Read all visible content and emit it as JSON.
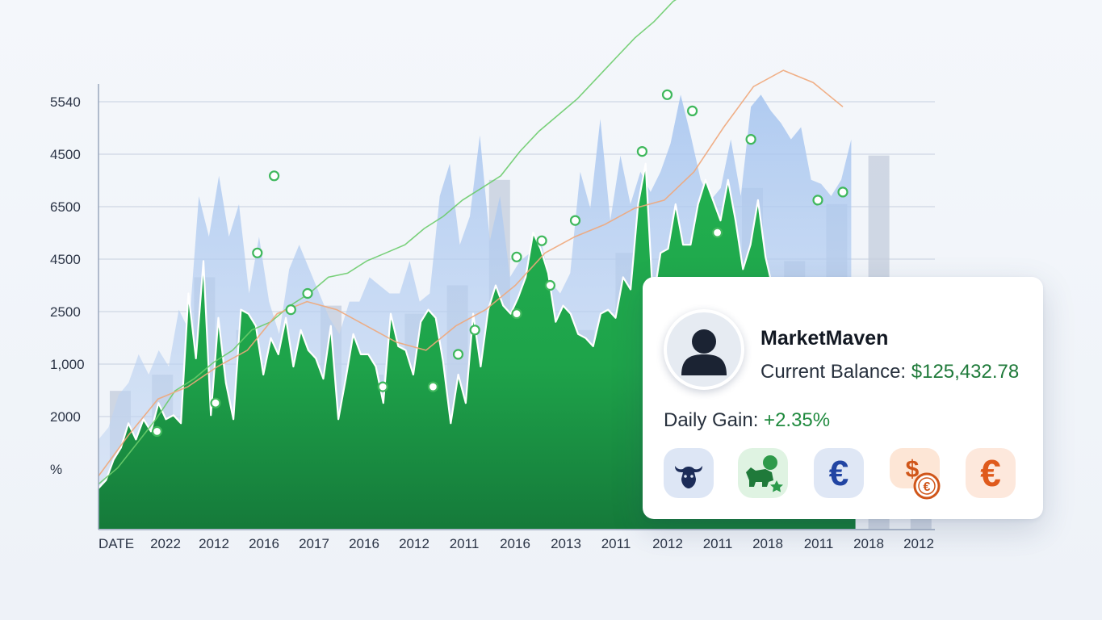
{
  "chart_data": {
    "type": "area",
    "y_tick_labels": [
      "5540",
      "4500",
      "6500",
      "4500",
      "2500",
      "1,000",
      "2000",
      "%"
    ],
    "x_tick_labels": [
      "DATE",
      "2022",
      "2012",
      "2016",
      "2017",
      "2016",
      "2012",
      "2011",
      "2016",
      "2013",
      "2011",
      "2012",
      "2011",
      "2018",
      "2011",
      "2018",
      "2012"
    ],
    "grid": true,
    "legend": "none",
    "series": [
      {
        "kind": "area",
        "color": "#1ba34a",
        "values": [
          0.1,
          0.12,
          0.17,
          0.2,
          0.26,
          0.22,
          0.27,
          0.24,
          0.31,
          0.27,
          0.28,
          0.26,
          0.58,
          0.42,
          0.66,
          0.28,
          0.52,
          0.36,
          0.27,
          0.54,
          0.53,
          0.5,
          0.38,
          0.47,
          0.43,
          0.52,
          0.4,
          0.49,
          0.44,
          0.42,
          0.37,
          0.5,
          0.27,
          0.37,
          0.48,
          0.43,
          0.43,
          0.4,
          0.31,
          0.53,
          0.45,
          0.44,
          0.38,
          0.51,
          0.54,
          0.52,
          0.41,
          0.26,
          0.38,
          0.31,
          0.53,
          0.4,
          0.54,
          0.6,
          0.55,
          0.53,
          0.57,
          0.62,
          0.73,
          0.69,
          0.63,
          0.51,
          0.55,
          0.53,
          0.48,
          0.47,
          0.45,
          0.53,
          0.54,
          0.52,
          0.62,
          0.59,
          0.8,
          0.9,
          0.56,
          0.68,
          0.69,
          0.8,
          0.7,
          0.7,
          0.8,
          0.86,
          0.81,
          0.76,
          0.86,
          0.76,
          0.64,
          0.7,
          0.81,
          0.67,
          0.59,
          0.53,
          0.48,
          0.43,
          0.61,
          0.56,
          0.54,
          0.48,
          0.4,
          0.34,
          0.3,
          0.26
        ]
      },
      {
        "kind": "area",
        "color": "#9fc0ec",
        "values": [
          0.22,
          0.25,
          0.33,
          0.36,
          0.43,
          0.38,
          0.44,
          0.4,
          0.54,
          0.49,
          0.82,
          0.72,
          0.87,
          0.72,
          0.8,
          0.58,
          0.72,
          0.56,
          0.48,
          0.64,
          0.7,
          0.64,
          0.58,
          0.52,
          0.48,
          0.56,
          0.56,
          0.62,
          0.6,
          0.58,
          0.58,
          0.66,
          0.56,
          0.58,
          0.82,
          0.9,
          0.7,
          0.77,
          0.97,
          0.71,
          0.82,
          0.62,
          0.66,
          0.68,
          0.72,
          0.61,
          0.58,
          0.63,
          0.88,
          0.79,
          1.01,
          0.76,
          0.92,
          0.8,
          0.88,
          0.83,
          0.88,
          0.95,
          1.07,
          0.97,
          0.86,
          0.81,
          0.84,
          0.96,
          0.82,
          1.04,
          1.07,
          1.03,
          1.0,
          0.96,
          0.99,
          0.86,
          0.85,
          0.82,
          0.86,
          0.96
        ]
      },
      {
        "kind": "line",
        "color": "#6ccc6c",
        "values": [
          0.11,
          0.15,
          0.21,
          0.27,
          0.34,
          0.37,
          0.41,
          0.44,
          0.49,
          0.51,
          0.55,
          0.58,
          0.62,
          0.63,
          0.66,
          0.68,
          0.7,
          0.74,
          0.77,
          0.81,
          0.84,
          0.87,
          0.93,
          0.98,
          1.02,
          1.06,
          1.11,
          1.16,
          1.21,
          1.25,
          1.3,
          1.33
        ]
      },
      {
        "kind": "line",
        "color": "#f0a77a",
        "values": [
          0.13,
          0.23,
          0.32,
          0.35,
          0.4,
          0.44,
          0.53,
          0.56,
          0.54,
          0.5,
          0.46,
          0.44,
          0.5,
          0.54,
          0.6,
          0.68,
          0.72,
          0.75,
          0.79,
          0.81,
          0.88,
          0.99,
          1.09,
          1.13,
          1.1,
          1.04
        ]
      },
      {
        "kind": "bar",
        "color": "#b3bdd1",
        "values": [
          0.34,
          0.38,
          0.62,
          0.49,
          0.4,
          0.55,
          0.38,
          0.53,
          0.6,
          0.86,
          0.56,
          0.49,
          0.68,
          0.49,
          0.74,
          0.84,
          0.66,
          0.8,
          0.92,
          0.62
        ]
      }
    ],
    "markers": [
      {
        "x": 0.07,
        "y": 0.24
      },
      {
        "x": 0.14,
        "y": 0.31
      },
      {
        "x": 0.19,
        "y": 0.68
      },
      {
        "x": 0.21,
        "y": 0.87
      },
      {
        "x": 0.23,
        "y": 0.54
      },
      {
        "x": 0.25,
        "y": 0.58
      },
      {
        "x": 0.34,
        "y": 0.35
      },
      {
        "x": 0.4,
        "y": 0.35
      },
      {
        "x": 0.43,
        "y": 0.43
      },
      {
        "x": 0.45,
        "y": 0.49
      },
      {
        "x": 0.5,
        "y": 0.53
      },
      {
        "x": 0.5,
        "y": 0.67
      },
      {
        "x": 0.53,
        "y": 0.71
      },
      {
        "x": 0.54,
        "y": 0.6
      },
      {
        "x": 0.57,
        "y": 0.76
      },
      {
        "x": 0.65,
        "y": 0.93
      },
      {
        "x": 0.68,
        "y": 1.07
      },
      {
        "x": 0.71,
        "y": 1.03
      },
      {
        "x": 0.74,
        "y": 0.73
      },
      {
        "x": 0.78,
        "y": 0.96
      },
      {
        "x": 0.86,
        "y": 0.81
      },
      {
        "x": 0.89,
        "y": 0.83
      }
    ]
  },
  "card": {
    "username": "MarketMaven",
    "balance_label": "Current Balance:",
    "balance_value": "$125,432.78",
    "gain_label": "Daily Gain:",
    "gain_value": "+2.35%",
    "icons": [
      {
        "name": "bull-icon",
        "bg": "#dde6f5",
        "fg": "#1c2c58"
      },
      {
        "name": "bull-star-icon",
        "bg": "#dff3e2",
        "fg": "#1f7a3a"
      },
      {
        "name": "euro-icon",
        "bg": "#dfe7f5",
        "fg": "#2245a3"
      },
      {
        "name": "dollar-euro-icon",
        "bg": "#fde6d6",
        "fg": "#d0561a"
      },
      {
        "name": "euro-icon",
        "bg": "#fde8dc",
        "fg": "#df5a1c"
      }
    ]
  }
}
